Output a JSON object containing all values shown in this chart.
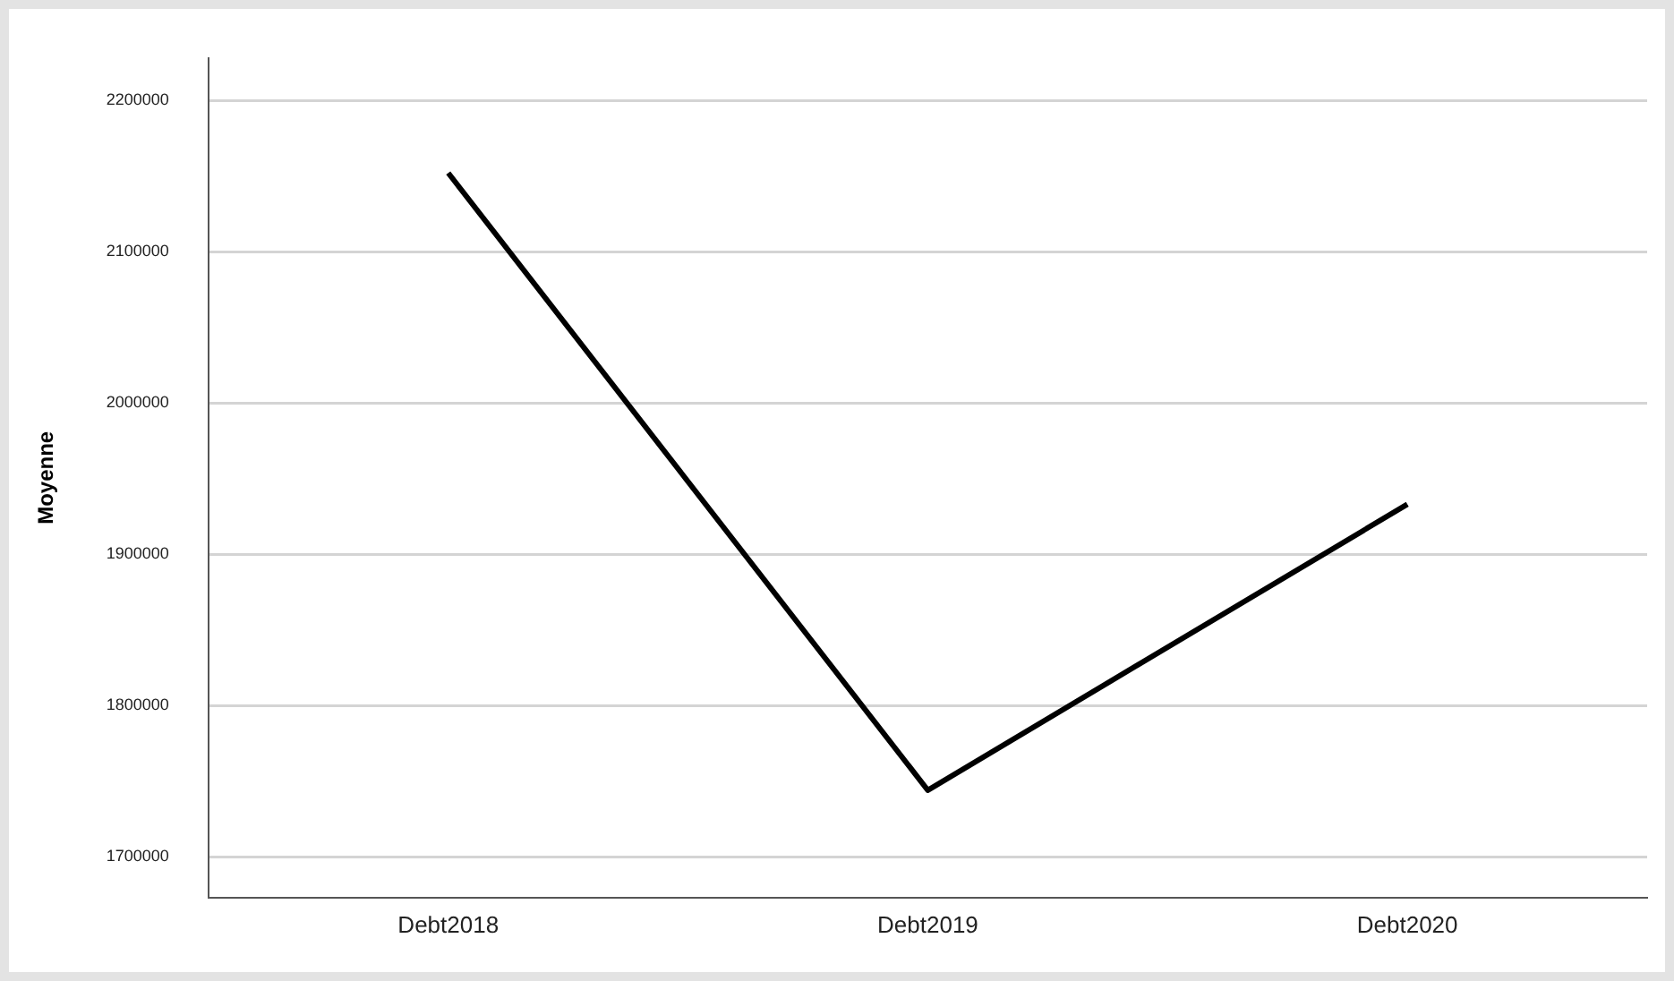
{
  "chart_data": {
    "type": "line",
    "ylabel": "Moyenne",
    "categories": [
      "Debt2018",
      "Debt2019",
      "Debt2020"
    ],
    "series": [
      {
        "color": "#000000",
        "values": [
          2152000,
          1744000,
          1933000
        ]
      }
    ],
    "ylim": [
      1673000,
      2228000
    ],
    "yticks": [
      1700000,
      1800000,
      1900000,
      2000000,
      2100000,
      2200000
    ],
    "grid": "y",
    "legend": false,
    "marker": "none",
    "line_style": "solid"
  }
}
